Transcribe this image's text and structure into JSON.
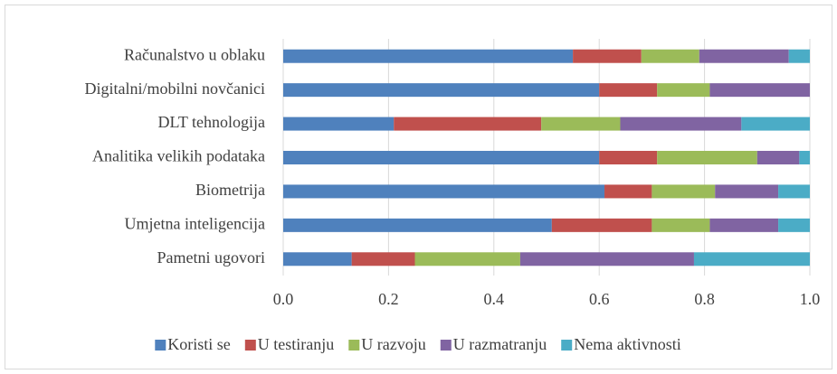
{
  "chart_data": {
    "type": "stacked-barh",
    "categories": [
      "Računalstvo u oblaku",
      "Digitalni/mobilni novčanici",
      "DLT tehnologija",
      "Analitika velikih podataka",
      "Biometrija",
      "Umjetna inteligencija",
      "Pametni ugovori"
    ],
    "series": [
      {
        "name": "Koristi se",
        "color": "#4f81bd",
        "values": [
          0.55,
          0.6,
          0.21,
          0.6,
          0.61,
          0.51,
          0.13
        ]
      },
      {
        "name": "U testiranju",
        "color": "#c0504d",
        "values": [
          0.13,
          0.11,
          0.28,
          0.11,
          0.09,
          0.19,
          0.12
        ]
      },
      {
        "name": "U razvoju",
        "color": "#9bbb59",
        "values": [
          0.11,
          0.1,
          0.15,
          0.19,
          0.12,
          0.11,
          0.2
        ]
      },
      {
        "name": "U razmatranju",
        "color": "#8064a2",
        "values": [
          0.17,
          0.19,
          0.23,
          0.08,
          0.12,
          0.13,
          0.33
        ]
      },
      {
        "name": "Nema aktivnosti",
        "color": "#4bacc6",
        "values": [
          0.04,
          0,
          0.13,
          0.02,
          0.06,
          0.06,
          0.22
        ]
      }
    ],
    "xlim": [
      0,
      1
    ],
    "xticks": [
      {
        "value": 0,
        "label": "0.0"
      },
      0.2,
      0.4,
      0.6,
      0.8,
      {
        "value": 1,
        "label": "1.0"
      }
    ],
    "grid": true,
    "legend": "bottom"
  }
}
